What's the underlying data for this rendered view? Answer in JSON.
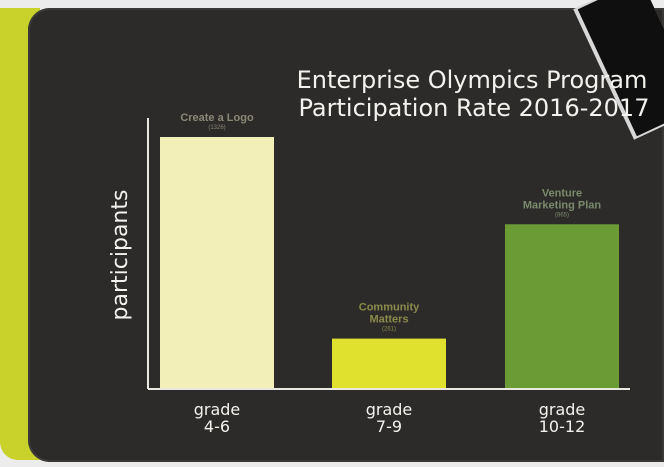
{
  "chart_data": {
    "type": "bar",
    "title_lines": [
      "Enterprise Olympics Program",
      "Participation Rate 2016-2017"
    ],
    "ylabel": "participants",
    "categories": [
      [
        "grade",
        "4-6"
      ],
      [
        "grade",
        "7-9"
      ],
      [
        "grade",
        "10-12"
      ]
    ],
    "bar_labels": [
      [
        "Create a Logo"
      ],
      [
        "Community",
        "Matters"
      ],
      [
        "Venture",
        "Marketing Plan"
      ]
    ],
    "bar_sublabels": [
      "(1326)",
      "(261)",
      "(865)"
    ],
    "values": [
      1326,
      261,
      865
    ],
    "colors": [
      "#f2efb8",
      "#dfe12e",
      "#6a9b35"
    ],
    "label_colors": [
      "#8a8776",
      "#8a8a4a",
      "#7b8a6c"
    ],
    "ylim": [
      0,
      1400
    ],
    "grid": false
  }
}
